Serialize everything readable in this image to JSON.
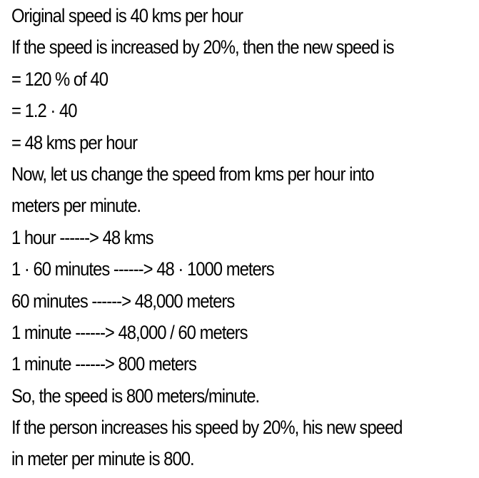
{
  "lines": [
    "Original speed is 40 kms per hour",
    "If the speed is increased by 20%, then the new speed is",
    "= 120 % of 40",
    "= 1.2 · 40",
    "= 48 kms per hour",
    "Now, let us change the speed from kms per hour into",
    "meters per minute.",
    "1 hour ------> 48 kms",
    "1 · 60 minutes ------> 48 · 1000 meters",
    "60 minutes ------> 48,000 meters",
    "1 minute ------> 48,000 / 60 meters",
    "1 minute ------> 800 meters",
    "So, the speed is 800 meters/minute.",
    "If the person increases his speed by 20%, his new speed",
    "in meter per minute is 800."
  ]
}
